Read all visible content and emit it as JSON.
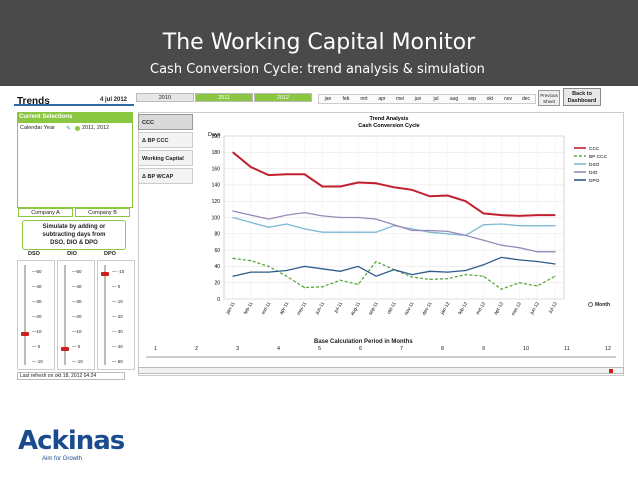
{
  "banner": {
    "title": "The Working Capital Monitor",
    "subtitle": "Cash Conversion Cycle: trend analysis & simulation"
  },
  "header": {
    "title": "Trends",
    "date": "4 jul 2012",
    "years": [
      "2010",
      "2011",
      "2012"
    ],
    "months": [
      "jan",
      "feb",
      "mrt",
      "apr",
      "mei",
      "jun",
      "jul",
      "aug",
      "sep",
      "okt",
      "nov",
      "dec"
    ],
    "prev_sheet": "Previous Sheet",
    "back": "Back to Dashboard"
  },
  "selections": {
    "title": "Current Selections",
    "label": "Calendar Year",
    "value": "2011, 2012"
  },
  "company": {
    "a": "Company A",
    "b": "Company B"
  },
  "simulate": {
    "line1": "Simulate by adding or",
    "line2": "subtracting days from",
    "line3": "DSO, DIO & DPO"
  },
  "sliders": [
    {
      "name": "DSO",
      "ticks": [
        "50",
        "40",
        "30",
        "20",
        "10",
        "0",
        "10"
      ],
      "signs": [
        "—",
        "—",
        "—",
        "—",
        "—",
        "",
        ""
      ]
    },
    {
      "name": "DIO",
      "ticks": [
        "50",
        "40",
        "30",
        "20",
        "10",
        "0",
        "10"
      ]
    },
    {
      "name": "DPO",
      "ticks": [
        "-10",
        "0",
        "10",
        "20",
        "30",
        "40",
        "50"
      ]
    }
  ],
  "slider_ticks": {
    "dso": [
      "—50",
      "—40",
      "—30",
      "—20",
      "—10",
      "— 0",
      "— 10"
    ],
    "dio": [
      "—50",
      "—40",
      "—30",
      "—20",
      "—10",
      "— 0",
      "— 10"
    ],
    "dpo": [
      "— -10",
      "— 0",
      "— 10",
      "— 20",
      "— 30",
      "— 40",
      "— 50"
    ]
  },
  "refresh": "Last refresh on okt 18, 2012 04:24",
  "tabs": [
    "CCC",
    "Δ BP CCC",
    "Working Capital",
    "Δ BP WCAP"
  ],
  "month_toggle": "Month",
  "period": {
    "title": "Base Calculation Period in Months",
    "numbers": [
      "1",
      "2",
      "3",
      "4",
      "5",
      "6",
      "7",
      "8",
      "9",
      "10",
      "11",
      "12"
    ]
  },
  "chart_data": {
    "type": "line",
    "title": "Trend Analysis",
    "subtitle": "Cash Conversion Cycle",
    "ylabel": "Days",
    "ylim": [
      0,
      200
    ],
    "yticks": [
      0,
      20,
      40,
      60,
      80,
      100,
      120,
      140,
      160,
      180,
      200
    ],
    "grid": true,
    "legend": "right",
    "categories": [
      "jan-11",
      "feb-11",
      "mrt-11",
      "apr-11",
      "mei-11",
      "jun-11",
      "jul-11",
      "aug-11",
      "sep-11",
      "okt-11",
      "nov-11",
      "dec-11",
      "jan-12",
      "feb-12",
      "mrt-12",
      "apr-12",
      "mei-12",
      "jun-12",
      "jul-12"
    ],
    "series": [
      {
        "name": "CCC",
        "color": "#c0202e",
        "dash": false,
        "values": [
          180,
          162,
          152,
          153,
          153,
          138,
          138,
          143,
          142,
          137,
          134,
          126,
          127,
          120,
          105,
          103,
          102,
          103,
          103
        ]
      },
      {
        "name": "BP CCC",
        "color": "#5aa840",
        "dash": true,
        "values": [
          50,
          47,
          40,
          28,
          14,
          15,
          23,
          18,
          46,
          36,
          27,
          24,
          25,
          30,
          28,
          12,
          20,
          16,
          28
        ]
      },
      {
        "name": "DSO",
        "color": "#7fb9d6",
        "dash": false,
        "values": [
          100,
          94,
          88,
          92,
          86,
          82,
          82,
          82,
          82,
          90,
          86,
          82,
          80,
          78,
          91,
          92,
          90,
          90,
          90
        ]
      },
      {
        "name": "DIO",
        "color": "#9a88b8",
        "dash": false,
        "values": [
          108,
          103,
          98,
          103,
          106,
          102,
          100,
          100,
          98,
          91,
          84,
          84,
          83,
          78,
          72,
          66,
          63,
          58,
          58
        ]
      },
      {
        "name": "DPO",
        "color": "#2f5b8a",
        "dash": false,
        "values": [
          28,
          33,
          33,
          35,
          40,
          37,
          34,
          40,
          28,
          36,
          30,
          34,
          33,
          35,
          42,
          51,
          48,
          46,
          43
        ]
      }
    ]
  },
  "logo": {
    "name": "Ackinas",
    "tagline": "Aim for Growth"
  }
}
